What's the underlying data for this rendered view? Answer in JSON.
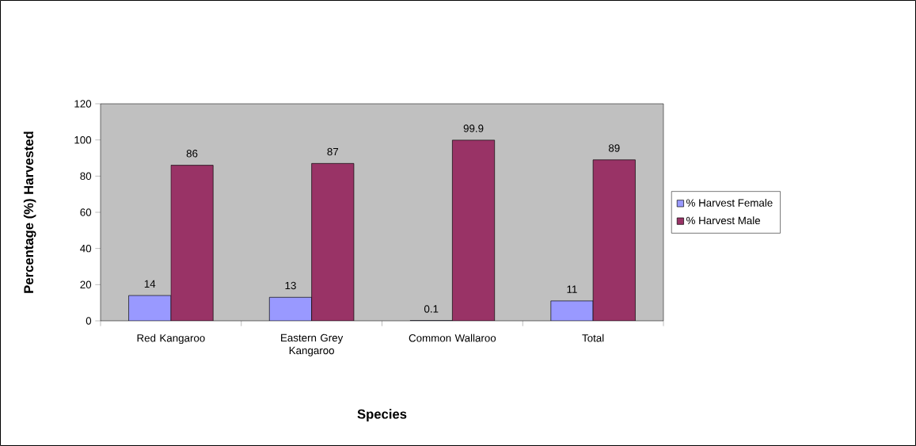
{
  "chart_data": {
    "type": "bar",
    "xlabel": "Species",
    "ylabel": "Percentage (%) Harvested",
    "categories": [
      "Red Kangaroo",
      "Eastern Grey Kangaroo",
      "Common Wallaroo",
      "Total"
    ],
    "series": [
      {
        "name": "% Harvest Female",
        "color": "#9999ff",
        "values": [
          14,
          13,
          0.1,
          11
        ]
      },
      {
        "name": "% Harvest Male",
        "color": "#993366",
        "values": [
          86,
          87,
          99.9,
          89
        ]
      }
    ],
    "ylim": [
      0,
      120
    ],
    "yticks": [
      0,
      20,
      40,
      60,
      80,
      100,
      120
    ],
    "grid": false,
    "legend": "right",
    "data_labels": true
  }
}
